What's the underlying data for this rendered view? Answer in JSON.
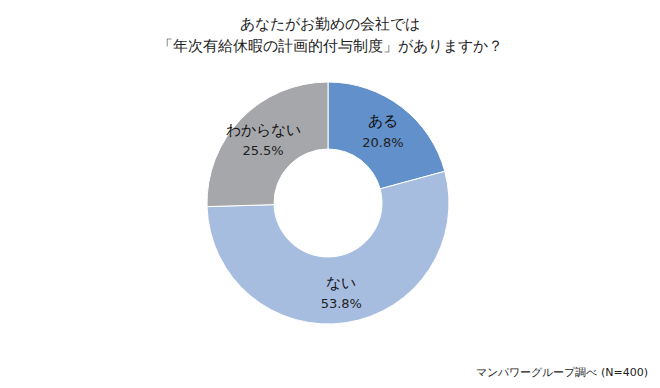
{
  "chart_data": {
    "type": "pie",
    "title": "あなたがお勤めの会社では\n「年次有給休暇の計画的付与制度」がありますか？",
    "source": "マンパワーグループ調べ (N=400)",
    "categories": [
      "ある",
      "ない",
      "わからない"
    ],
    "values": [
      20.8,
      53.8,
      25.5
    ],
    "value_labels": [
      "20.8%",
      "53.8%",
      "25.5%"
    ],
    "colors": [
      "#6190cb",
      "#a7bde0",
      "#a6a7ab"
    ],
    "data_labels": true
  }
}
